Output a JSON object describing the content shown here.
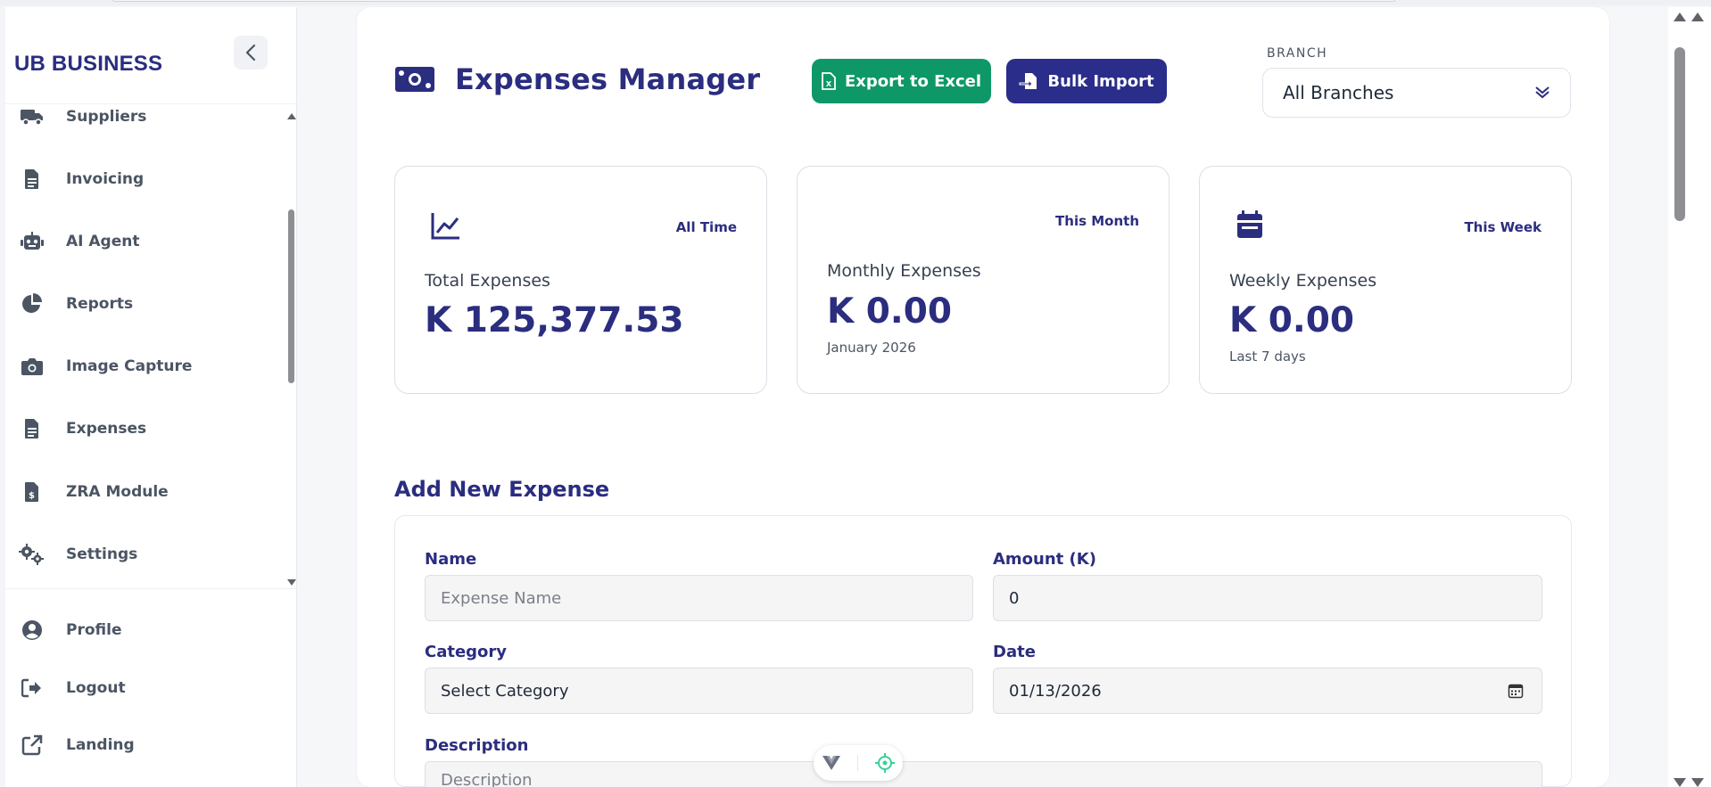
{
  "brand": {
    "name": "UB BUSINESS"
  },
  "sidebar": {
    "items": [
      {
        "label": "Suppliers",
        "icon": "truck-icon"
      },
      {
        "label": "Invoicing",
        "icon": "document-icon"
      },
      {
        "label": "AI Agent",
        "icon": "robot-icon"
      },
      {
        "label": "Reports",
        "icon": "pie-chart-icon"
      },
      {
        "label": "Image Capture",
        "icon": "camera-icon"
      },
      {
        "label": "Expenses",
        "icon": "receipt-icon"
      },
      {
        "label": "ZRA Module",
        "icon": "invoice-dollar-icon"
      },
      {
        "label": "Settings",
        "icon": "gears-icon"
      }
    ],
    "bottom_items": [
      {
        "label": "Profile",
        "icon": "user-circle-icon"
      },
      {
        "label": "Logout",
        "icon": "logout-icon"
      },
      {
        "label": "Landing",
        "icon": "external-link-icon"
      }
    ]
  },
  "header": {
    "title": "Expenses Manager",
    "export_label": "Export to Excel",
    "import_label": "Bulk Import",
    "branch_label": "BRANCH",
    "branch_value": "All Branches"
  },
  "stats": [
    {
      "period": "All Time",
      "title": "Total Expenses",
      "value": "K 125,377.53",
      "sub": ""
    },
    {
      "period": "This Month",
      "title": "Monthly Expenses",
      "value": "K 0.00",
      "sub": "January 2026"
    },
    {
      "period": "This Week",
      "title": "Weekly Expenses",
      "value": "K 0.00",
      "sub": "Last 7 days"
    }
  ],
  "form": {
    "title": "Add New Expense",
    "name_label": "Name",
    "name_placeholder": "Expense Name",
    "amount_label": "Amount (K)",
    "amount_value": "0",
    "category_label": "Category",
    "category_value": "Select Category",
    "date_label": "Date",
    "date_value": "01/13/2026",
    "description_label": "Description",
    "description_placeholder": "Description"
  },
  "colors": {
    "brand": "#2b2d7f",
    "export_button": "#0e9868",
    "import_button": "#2b2d8a"
  }
}
